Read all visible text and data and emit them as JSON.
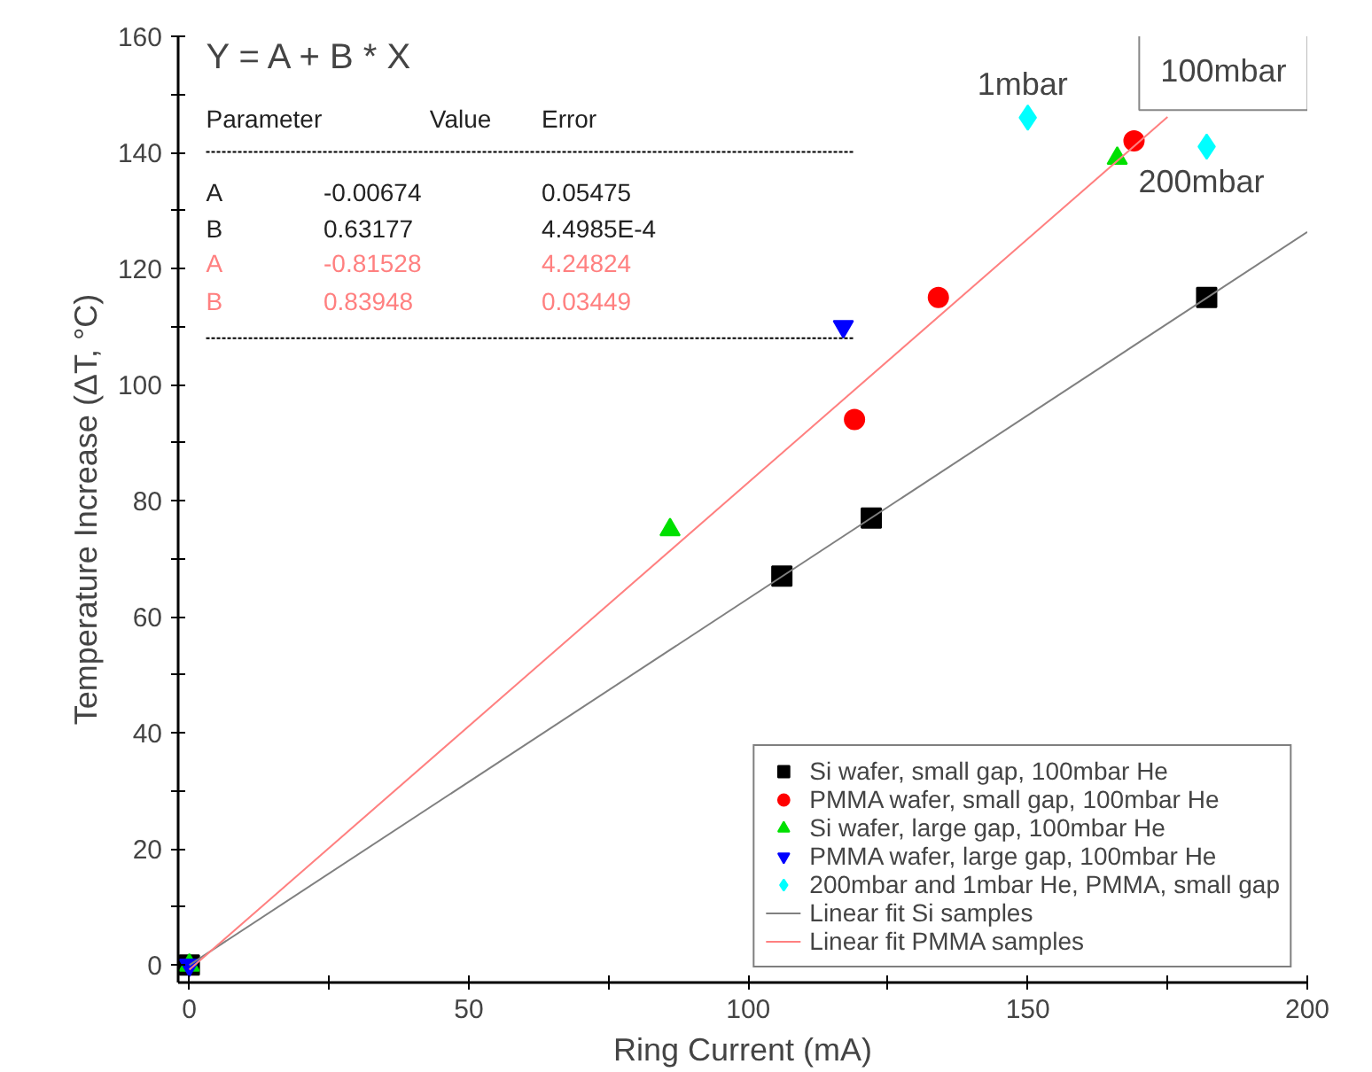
{
  "chart_data": {
    "type": "scatter",
    "xlabel": "Ring Current (mA)",
    "ylabel": "Temperature Increase (ΔT, °C)",
    "xlim": [
      -2,
      200
    ],
    "ylim": [
      -3,
      160
    ],
    "xticks": [
      0,
      {
        "value": 25,
        "label": null
      },
      50,
      {
        "value": 75,
        "label": null
      },
      100,
      {
        "value": 125,
        "label": null
      },
      150,
      {
        "value": 175,
        "label": null
      },
      200
    ],
    "yticks": [
      0,
      {
        "value": 10,
        "label": null
      },
      20,
      {
        "value": 30,
        "label": null
      },
      40,
      {
        "value": 50,
        "label": null
      },
      60,
      {
        "value": 70,
        "label": null
      },
      80,
      {
        "value": 90,
        "label": null
      },
      100,
      {
        "value": 110,
        "label": null
      },
      120,
      {
        "value": 130,
        "label": null
      },
      140,
      {
        "value": 150,
        "label": null
      },
      160
    ],
    "grid": false,
    "legend": "bottom right",
    "series": [
      {
        "name": "Si wafer, small gap, 100mbar He",
        "color": "#000000",
        "marker": "square",
        "x": [
          0,
          106,
          122,
          182
        ],
        "values": [
          0,
          67,
          77,
          115
        ]
      },
      {
        "name": "PMMA wafer, small gap, 100mbar He",
        "color": "#ff0000",
        "marker": "circle",
        "x": [
          119,
          134,
          169
        ],
        "values": [
          94,
          115,
          142
        ]
      },
      {
        "name": "Si wafer, large gap, 100mbar He",
        "color": "#00e000",
        "marker": "triangle",
        "x": [
          0,
          86,
          166
        ],
        "values": [
          0,
          75,
          139
        ]
      },
      {
        "name": "PMMA wafer, large gap, 100mbar He",
        "color": "#0000ff",
        "marker": "triangle_down",
        "x": [
          0,
          117
        ],
        "values": [
          0,
          110
        ]
      },
      {
        "name": "200mbar and 1mbar He, PMMA, small gap",
        "color": "#00ffff",
        "marker": "diamond",
        "x": [
          150,
          182
        ],
        "values": [
          146,
          141
        ]
      },
      {
        "name": "Linear fit Si samples",
        "type": "line",
        "color": "#808080",
        "x": [
          0,
          200
        ],
        "values": [
          0,
          126.3
        ]
      },
      {
        "name": "Linear fit PMMA samples",
        "type": "line",
        "color": "#ff8080",
        "x": [
          0,
          175
        ],
        "values": [
          -0.8,
          146.1
        ]
      }
    ],
    "annotations": [
      "Y = A + B * X",
      "Parameter",
      "Value",
      "Error",
      "A",
      "-0.00674",
      "0.05475",
      "B",
      "0.63177",
      "4.4985E-4",
      "A",
      "-0.81528",
      "4.24824",
      "B",
      "0.83948",
      "0.03449",
      {
        "text": "1mbar",
        "x": 150,
        "y": 146
      },
      {
        "text": "200mbar",
        "x": 182,
        "y": 141
      },
      "100mbar"
    ]
  }
}
